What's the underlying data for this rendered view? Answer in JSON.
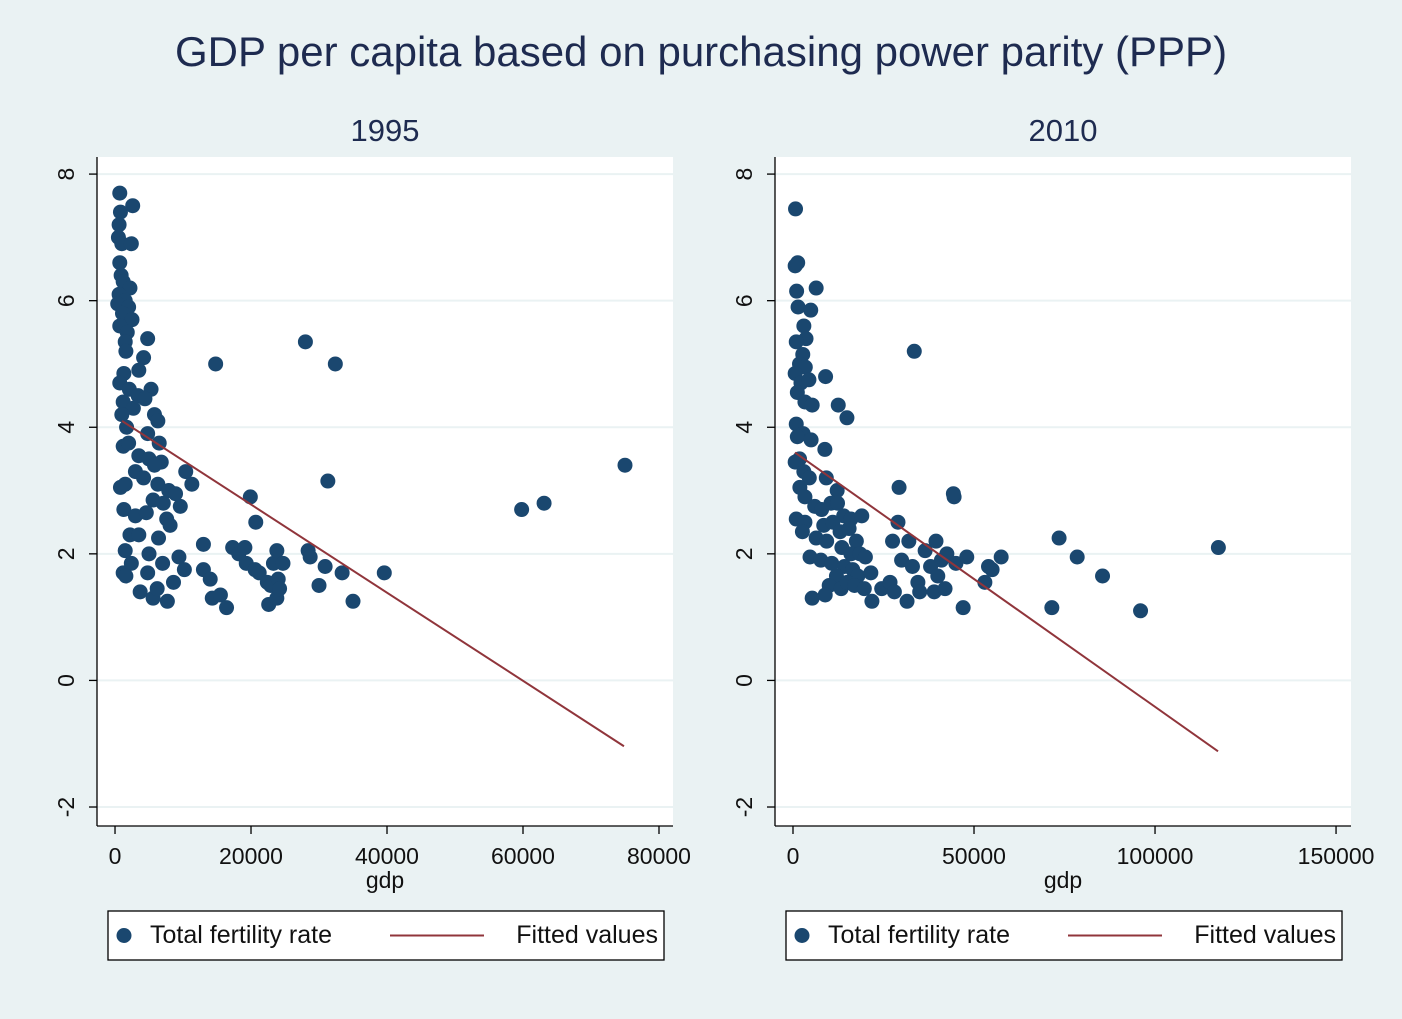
{
  "title": "GDP per capita based on purchasing power parity (PPP)",
  "chart_data": [
    {
      "type": "scatter",
      "title": "1995",
      "xlabel": "gdp",
      "xlim": [
        -2650,
        82060
      ],
      "ylim": [
        -2.3,
        8.27
      ],
      "xticks": [
        0,
        20000,
        40000,
        60000,
        80000
      ],
      "yticks": [
        -2,
        0,
        2,
        4,
        6,
        8
      ],
      "grid": true,
      "legend": "bottom",
      "series": [
        {
          "name": "Total fertility rate",
          "color": "#1a476f",
          "type": "scatter",
          "x": [
            700,
            2600,
            800,
            600,
            500,
            1000,
            2400,
            700,
            900,
            1200,
            2200,
            600,
            1500,
            400,
            2000,
            1100,
            2500,
            700,
            1800,
            1500,
            4800,
            1600,
            4200,
            3500,
            1300,
            700,
            2100,
            3400,
            5300,
            4400,
            1200,
            2700,
            1000,
            5800,
            6300,
            1700,
            4800,
            6500,
            1200,
            2000,
            3500,
            5000,
            6800,
            3000,
            5800,
            4200,
            6300,
            800,
            1500,
            7900,
            8900,
            10400,
            11300,
            5600,
            7100,
            9600,
            1300,
            3000,
            4600,
            7600,
            8100,
            6400,
            2200,
            3500,
            1500,
            5000,
            7000,
            9400,
            4800,
            1200,
            2400,
            1600,
            3700,
            5600,
            6200,
            7700,
            8600,
            10200,
            13000,
            13000,
            14000,
            14300,
            15500,
            16400,
            14800,
            17300,
            18200,
            19100,
            19300,
            20600,
            21200,
            20700,
            19900,
            22400,
            22900,
            22600,
            23300,
            23800,
            24000,
            23800,
            24200,
            24700,
            28400,
            28700,
            28000,
            32400,
            31300,
            30900,
            30000,
            33400,
            35000,
            39600,
            59800,
            63100,
            75000
          ],
          "values": [
            7.7,
            7.5,
            7.4,
            7.2,
            7.0,
            6.9,
            6.9,
            6.6,
            6.4,
            6.3,
            6.2,
            6.1,
            6.0,
            5.95,
            5.9,
            5.8,
            5.7,
            5.6,
            5.5,
            5.35,
            5.4,
            5.2,
            5.1,
            4.9,
            4.85,
            4.7,
            4.6,
            4.5,
            4.6,
            4.45,
            4.4,
            4.3,
            4.2,
            4.2,
            4.1,
            4.0,
            3.9,
            3.75,
            3.7,
            3.75,
            3.55,
            3.5,
            3.45,
            3.3,
            3.4,
            3.2,
            3.1,
            3.05,
            3.1,
            3.0,
            2.95,
            3.3,
            3.1,
            2.85,
            2.8,
            2.75,
            2.7,
            2.6,
            2.65,
            2.55,
            2.45,
            2.25,
            2.3,
            2.3,
            2.05,
            2.0,
            1.85,
            1.95,
            1.7,
            1.7,
            1.85,
            1.65,
            1.4,
            1.3,
            1.45,
            1.25,
            1.55,
            1.75,
            2.15,
            1.75,
            1.6,
            1.3,
            1.35,
            1.15,
            5.0,
            2.1,
            2.0,
            2.1,
            1.85,
            1.75,
            1.7,
            2.5,
            2.9,
            1.55,
            1.5,
            1.2,
            1.85,
            2.05,
            1.6,
            1.3,
            1.45,
            1.85,
            2.05,
            1.95,
            5.35,
            5.0,
            3.15,
            1.8,
            1.5,
            1.7,
            1.25,
            1.7,
            2.7,
            2.8,
            3.4
          ]
        },
        {
          "name": "Fitted values",
          "color": "#90353b",
          "type": "line",
          "x": [
            1030,
            74850
          ],
          "values": [
            4.1,
            -1.04
          ]
        }
      ]
    },
    {
      "type": "scatter",
      "title": "2010",
      "xlabel": "gdp",
      "xlim": [
        -4970,
        154130
      ],
      "ylim": [
        -2.3,
        8.27
      ],
      "xticks": [
        0,
        50000,
        100000,
        150000
      ],
      "yticks": [
        -2,
        0,
        2,
        4,
        6,
        8
      ],
      "grid": true,
      "legend": "bottom",
      "series": [
        {
          "name": "Total fertility rate",
          "color": "#1a476f",
          "type": "scatter",
          "x": [
            700,
            600,
            1300,
            1000,
            1400,
            3000,
            6400,
            4900,
            3600,
            900,
            2700,
            1800,
            3400,
            600,
            2200,
            4400,
            9000,
            1200,
            3300,
            5300,
            12500,
            14900,
            900,
            2800,
            1200,
            5000,
            8800,
            1800,
            600,
            3000,
            4500,
            9200,
            1900,
            3300,
            12200,
            6000,
            7900,
            10500,
            12300,
            14000,
            16000,
            19000,
            900,
            3300,
            8500,
            11000,
            13000,
            15500,
            17500,
            2600,
            6400,
            9300,
            13500,
            16000,
            18500,
            20000,
            4700,
            7700,
            10700,
            14200,
            16500,
            17900,
            12000,
            10000,
            13300,
            15000,
            17000,
            19700,
            21500,
            8900,
            5300,
            21800,
            24500,
            26800,
            28000,
            27500,
            29000,
            29300,
            30000,
            31500,
            32000,
            33000,
            34500,
            35000,
            33500,
            36500,
            38000,
            39000,
            39500,
            40000,
            41000,
            42000,
            42500,
            44500,
            44300,
            45000,
            47000,
            48000,
            53000,
            54000,
            55000,
            57500,
            71500,
            73500,
            78500,
            85500,
            96000,
            117500
          ],
          "values": [
            7.45,
            6.55,
            6.6,
            6.15,
            5.9,
            5.6,
            6.2,
            5.85,
            5.4,
            5.35,
            5.15,
            5.0,
            4.95,
            4.85,
            4.7,
            4.75,
            4.8,
            4.55,
            4.4,
            4.35,
            4.35,
            4.15,
            4.05,
            3.9,
            3.85,
            3.8,
            3.65,
            3.5,
            3.45,
            3.3,
            3.2,
            3.2,
            3.05,
            2.9,
            3.0,
            2.75,
            2.7,
            2.8,
            2.8,
            2.6,
            2.55,
            2.6,
            2.55,
            2.5,
            2.45,
            2.5,
            2.35,
            2.4,
            2.2,
            2.35,
            2.25,
            2.2,
            2.1,
            2.0,
            2.0,
            1.95,
            1.95,
            1.9,
            1.85,
            1.8,
            1.75,
            1.65,
            1.65,
            1.5,
            1.45,
            1.55,
            1.5,
            1.45,
            1.7,
            1.35,
            1.3,
            1.25,
            1.45,
            1.55,
            1.4,
            2.2,
            2.5,
            3.05,
            1.9,
            1.25,
            2.2,
            1.8,
            1.55,
            1.4,
            5.2,
            2.05,
            1.8,
            1.4,
            2.2,
            1.65,
            1.9,
            1.45,
            2.0,
            2.9,
            2.95,
            1.85,
            1.15,
            1.95,
            1.55,
            1.8,
            1.75,
            1.95,
            1.15,
            2.25,
            1.95,
            1.65,
            1.1,
            2.1
          ]
        },
        {
          "name": "Fitted values",
          "color": "#90353b",
          "type": "line",
          "x": [
            550,
            117400
          ],
          "values": [
            3.6,
            -1.12
          ]
        }
      ]
    }
  ]
}
